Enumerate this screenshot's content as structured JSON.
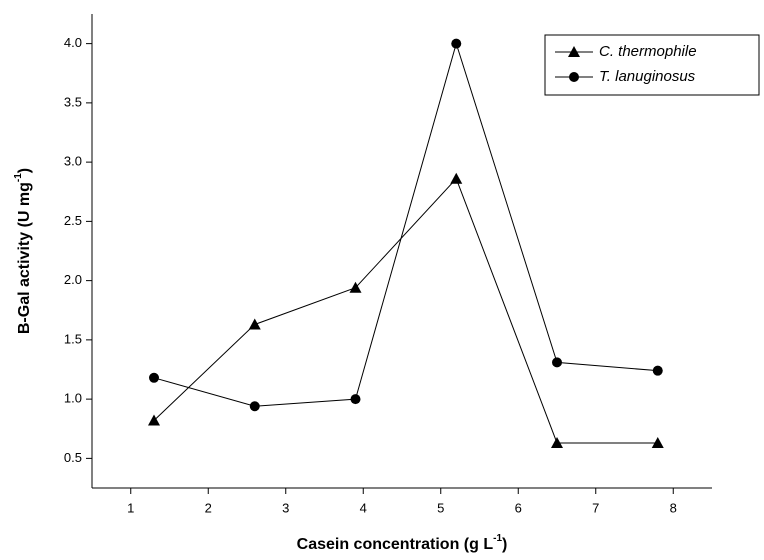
{
  "chart_data": {
    "type": "line",
    "xlabel": {
      "text": "Casein concentration (g L",
      "sup": "-1",
      "end": ")"
    },
    "ylabel": {
      "text": "B-Gal activity (U mg",
      "sup": "-1",
      "end": ")"
    },
    "x": [
      1.3,
      2.6,
      3.9,
      5.2,
      6.5,
      7.8
    ],
    "series": [
      {
        "name": "C. thermophile",
        "color": "#000000",
        "marker": "triangle",
        "values": [
          0.82,
          1.63,
          1.94,
          2.86,
          0.63,
          0.63
        ]
      },
      {
        "name": "T. lanuginosus",
        "color": "#000000",
        "marker": "circle",
        "values": [
          1.18,
          0.94,
          1.0,
          4.0,
          1.31,
          1.24
        ]
      }
    ],
    "xlim": [
      0.5,
      8.5
    ],
    "xticks": [
      1,
      2,
      3,
      4,
      5,
      6,
      7,
      8
    ],
    "ylim": [
      0.25,
      4.25
    ],
    "yticks": [
      0.5,
      {
        "value": 1,
        "label": "1.0"
      },
      1.5,
      {
        "value": 2,
        "label": "2.0"
      },
      2.5,
      {
        "value": 3,
        "label": "3.0"
      },
      3.5,
      {
        "value": 4,
        "label": "4.0"
      }
    ],
    "grid": false,
    "legend": "upper right"
  }
}
